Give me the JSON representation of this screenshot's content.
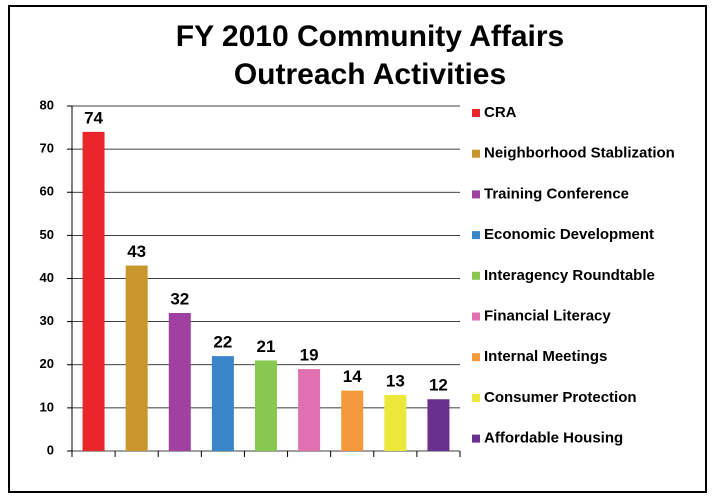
{
  "chart_data": {
    "type": "bar",
    "title": [
      "FY 2010 Community Affairs",
      "Outreach Activities"
    ],
    "categories": [
      "CRA",
      "Neighborhood Stablization",
      "Training Conference",
      "Economic Development",
      "Interagency Roundtable",
      "Financial Literacy",
      "Internal Meetings",
      "Consumer Protection",
      "Affordable Housing"
    ],
    "values": [
      74,
      43,
      32,
      22,
      21,
      19,
      14,
      13,
      12
    ],
    "colors": [
      "#e8262b",
      "#c8962a",
      "#a040a0",
      "#3a86c8",
      "#88c850",
      "#e070b0",
      "#f59a3c",
      "#ece83a",
      "#6a3090"
    ],
    "ylim": [
      0,
      80
    ],
    "yticks": [
      0,
      10,
      20,
      30,
      40,
      50,
      60,
      70,
      80
    ],
    "grid": true,
    "legend": "right"
  }
}
